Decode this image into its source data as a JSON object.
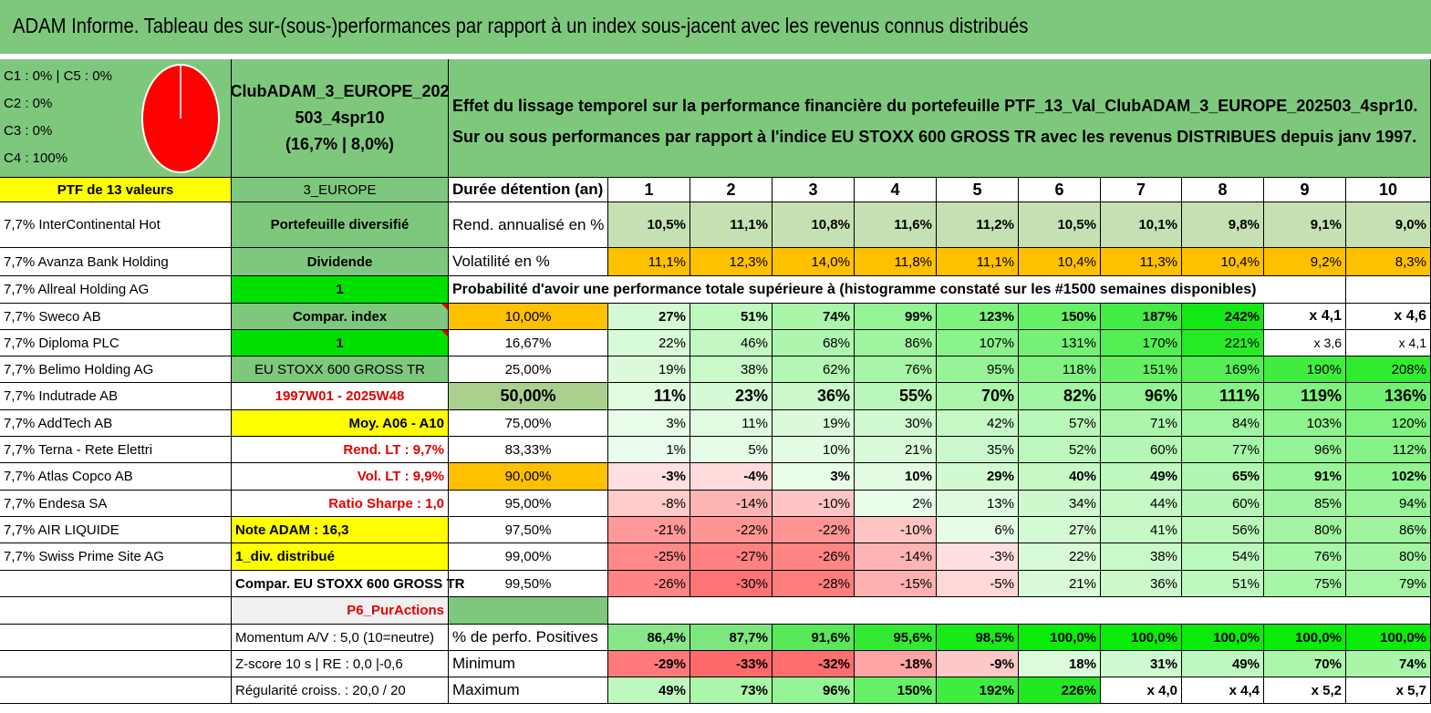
{
  "title": "ADAM Informe. Tableau des sur-(sous-)performances par rapport à un index sous-jacent avec les revenus connus distribués",
  "legend": [
    "C1 : 0% | C5 : 0%",
    "C2 : 0%",
    "C3 : 0%",
    "C4 : 100%"
  ],
  "pie": {
    "C4": 100,
    "color": "#ff0000"
  },
  "portfolio": {
    "name_line1": "ClubADAM_3_EUROPE_202",
    "name_line2": "503_4spr10",
    "stats": "(16,7% | 8,0%)"
  },
  "description": "Effet du lissage temporel sur la performance financière du portefeuille PTF_13_Val_ClubADAM_3_EUROPE_202503_4spr10. Sur ou sous performances par rapport à l'indice EU STOXX 600 GROSS TR avec les revenus DISTRIBUES depuis janv 1997.",
  "col_a": [
    "PTF de 13 valeurs",
    "7,7% InterContinental Hot",
    "7,7% Avanza Bank Holding",
    "7,7% Allreal Holding AG",
    "7,7% Sweco AB",
    "7,7% Diploma PLC",
    "7,7% Belimo Holding AG",
    "7,7% Indutrade AB",
    "7,7% AddTech AB",
    "7,7% Terna - Rete Elettri",
    "7,7% Atlas Copco AB",
    "7,7% Endesa SA",
    "7,7% AIR LIQUIDE",
    "7,7% Swiss Prime Site AG",
    "",
    "",
    "",
    "",
    ""
  ],
  "col_b": [
    "3_EUROPE",
    "Portefeuille diversifié",
    "Dividende",
    "1",
    "Compar. index",
    "1",
    "EU STOXX 600 GROSS TR",
    "1997W01 - 2025W48",
    "Moy. A06 - A10",
    "Rend. LT : 9,7%",
    "Vol. LT : 9,9%",
    "Ratio Sharpe : 1,0",
    "Note ADAM : 16,3",
    "1_div. distribué",
    "Compar. EU STOXX 600 GROSS TR",
    "P6_PurActions",
    "Momentum A/V : 5,0 (10=neutre)",
    "Z-score 10 s | RE : 0,0 |-0,6",
    "Régularité croiss. : 20,0 / 20"
  ],
  "header_label": "Durée détention (an)",
  "years": [
    "1",
    "2",
    "3",
    "4",
    "5",
    "6",
    "7",
    "8",
    "9",
    "10"
  ],
  "rend_label": "Rend. annualisé en %",
  "rend": [
    "10,5%",
    "11,1%",
    "10,8%",
    "11,6%",
    "11,2%",
    "10,5%",
    "10,1%",
    "9,8%",
    "9,1%",
    "9,0%"
  ],
  "vol_label": "Volatilité en %",
  "vol": [
    "11,1%",
    "12,3%",
    "14,0%",
    "11,8%",
    "11,1%",
    "10,4%",
    "11,3%",
    "10,4%",
    "9,2%",
    "8,3%"
  ],
  "prob_title": "Probabilité d'avoir une performance totale supérieure à (histogramme constaté sur les #1500 semaines disponibles)",
  "prob_rows": [
    {
      "p": "10,00%",
      "v": [
        "27%",
        "51%",
        "74%",
        "99%",
        "123%",
        "150%",
        "187%",
        "242%",
        "x 4,1",
        "x 4,6"
      ]
    },
    {
      "p": "16,67%",
      "v": [
        "22%",
        "46%",
        "68%",
        "86%",
        "107%",
        "131%",
        "170%",
        "221%",
        "x 3,6",
        "x 4,1"
      ]
    },
    {
      "p": "25,00%",
      "v": [
        "19%",
        "38%",
        "62%",
        "76%",
        "95%",
        "118%",
        "151%",
        "169%",
        "190%",
        "208%"
      ]
    },
    {
      "p": "50,00%",
      "v": [
        "11%",
        "23%",
        "36%",
        "55%",
        "70%",
        "82%",
        "96%",
        "111%",
        "119%",
        "136%"
      ]
    },
    {
      "p": "75,00%",
      "v": [
        "3%",
        "11%",
        "19%",
        "30%",
        "42%",
        "57%",
        "71%",
        "84%",
        "103%",
        "120%"
      ]
    },
    {
      "p": "83,33%",
      "v": [
        "1%",
        "5%",
        "10%",
        "21%",
        "35%",
        "52%",
        "60%",
        "77%",
        "96%",
        "112%"
      ]
    },
    {
      "p": "90,00%",
      "v": [
        "-3%",
        "-4%",
        "3%",
        "10%",
        "29%",
        "40%",
        "49%",
        "65%",
        "91%",
        "102%"
      ]
    },
    {
      "p": "95,00%",
      "v": [
        "-8%",
        "-14%",
        "-10%",
        "2%",
        "13%",
        "34%",
        "44%",
        "60%",
        "85%",
        "94%"
      ]
    },
    {
      "p": "97,50%",
      "v": [
        "-21%",
        "-22%",
        "-22%",
        "-10%",
        "6%",
        "27%",
        "41%",
        "56%",
        "80%",
        "86%"
      ]
    },
    {
      "p": "99,00%",
      "v": [
        "-25%",
        "-27%",
        "-26%",
        "-14%",
        "-3%",
        "22%",
        "38%",
        "54%",
        "76%",
        "80%"
      ]
    },
    {
      "p": "99,50%",
      "v": [
        "-26%",
        "-30%",
        "-28%",
        "-15%",
        "-5%",
        "21%",
        "36%",
        "51%",
        "75%",
        "79%"
      ]
    }
  ],
  "pos_label": "% de perfo. Positives",
  "pos": [
    "86,4%",
    "87,7%",
    "91,6%",
    "95,6%",
    "98,5%",
    "100,0%",
    "100,0%",
    "100,0%",
    "100,0%",
    "100,0%"
  ],
  "min_label": "Minimum",
  "min": [
    "-29%",
    "-33%",
    "-32%",
    "-18%",
    "-9%",
    "18%",
    "31%",
    "49%",
    "70%",
    "74%"
  ],
  "max_label": "Maximum",
  "max": [
    "49%",
    "73%",
    "96%",
    "150%",
    "192%",
    "226%",
    "x 4,0",
    "x 4,4",
    "x 5,2",
    "x 5,7"
  ],
  "colors": {
    "banner": "#7ec87e",
    "yellow": "#ffff00",
    "bright_green": "#00e000",
    "orange": "#ffc000",
    "red_text": "#e00000"
  }
}
